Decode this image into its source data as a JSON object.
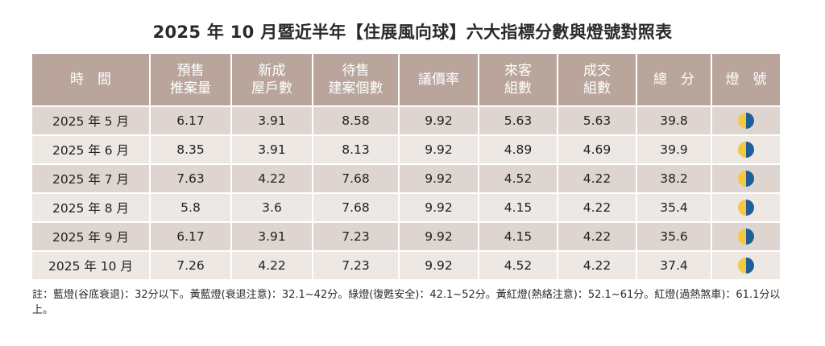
{
  "title": "2025 年 10 月暨近半年【住展風向球】六大指標分數與燈號對照表",
  "headers": [
    "時　間",
    "預售\n推案量",
    "新成\n屋戶數",
    "待售\n建案個數",
    "議價率",
    "來客\n組數",
    "成交\n組數",
    "總　分",
    "燈　號"
  ],
  "rows": [
    {
      "period": "2025 年 5 月",
      "presale": "6.17",
      "new_units": "3.91",
      "for_sale": "8.58",
      "bargain": "9.92",
      "visitors": "5.63",
      "deals": "5.63",
      "total": "39.8",
      "light": "yellow-blue"
    },
    {
      "period": "2025 年 6 月",
      "presale": "8.35",
      "new_units": "3.91",
      "for_sale": "8.13",
      "bargain": "9.92",
      "visitors": "4.89",
      "deals": "4.69",
      "total": "39.9",
      "light": "yellow-blue"
    },
    {
      "period": "2025 年 7 月",
      "presale": "7.63",
      "new_units": "4.22",
      "for_sale": "7.68",
      "bargain": "9.92",
      "visitors": "4.52",
      "deals": "4.22",
      "total": "38.2",
      "light": "yellow-blue"
    },
    {
      "period": "2025 年 8 月",
      "presale": "5.8",
      "new_units": "3.6",
      "for_sale": "7.68",
      "bargain": "9.92",
      "visitors": "4.15",
      "deals": "4.22",
      "total": "35.4",
      "light": "yellow-blue"
    },
    {
      "period": "2025 年 9 月",
      "presale": "6.17",
      "new_units": "3.91",
      "for_sale": "7.23",
      "bargain": "9.92",
      "visitors": "4.15",
      "deals": "4.22",
      "total": "35.6",
      "light": "yellow-blue"
    },
    {
      "period": "2025 年 10 月",
      "presale": "7.26",
      "new_units": "4.22",
      "for_sale": "7.23",
      "bargain": "9.92",
      "visitors": "4.52",
      "deals": "4.22",
      "total": "37.4",
      "light": "yellow-blue"
    }
  ],
  "note": "註：藍燈(谷底衰退)：32分以下。黃藍燈(衰退注意)：32.1~42分。綠燈(復甦安全)：42.1~52分。黃紅燈(熱絡注意)：52.1~61分。紅燈(過熱煞車)：61.1分以上。",
  "colors": {
    "header_bg": "#b9a59c",
    "row_odd": "#ded5d0",
    "row_even": "#ede8e4",
    "light_yellow": "#f5c842",
    "light_blue": "#1f5f98"
  }
}
